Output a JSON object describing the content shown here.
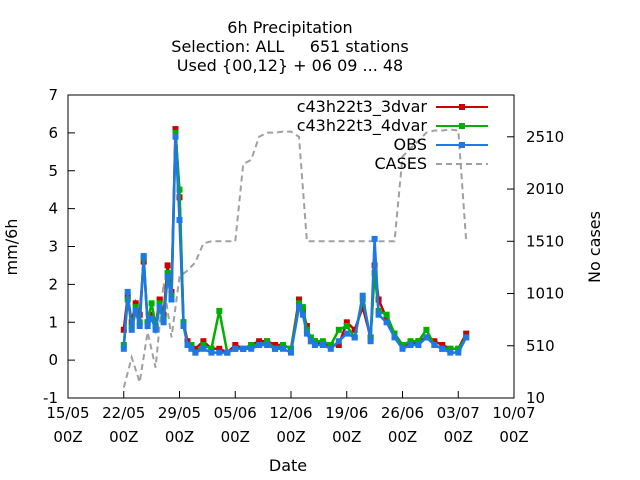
{
  "chart_data": {
    "type": "line",
    "title_lines": [
      "6h Precipitation",
      "Selection: ALL     651 stations",
      "Used {00,12} + 06 09 ... 48"
    ],
    "xlabel": "Date",
    "ylabel": "mm/6h",
    "y2label": "No cases",
    "xlim": [
      "2012-05-15 00Z",
      "2012-07-10 00Z"
    ],
    "ylim": [
      -1,
      7
    ],
    "y2lim": [
      10,
      2910
    ],
    "xticks": [
      {
        "top": "15/05",
        "bottom": "00Z"
      },
      {
        "top": "22/05",
        "bottom": "00Z"
      },
      {
        "top": "29/05",
        "bottom": "00Z"
      },
      {
        "top": "05/06",
        "bottom": "00Z"
      },
      {
        "top": "12/06",
        "bottom": "00Z"
      },
      {
        "top": "19/06",
        "bottom": "00Z"
      },
      {
        "top": "26/06",
        "bottom": "00Z"
      },
      {
        "top": "03/07",
        "bottom": "00Z"
      },
      {
        "top": "10/07",
        "bottom": "00Z"
      }
    ],
    "yticks": [
      "-1",
      "0",
      "1",
      "2",
      "3",
      "4",
      "5",
      "6",
      "7"
    ],
    "y2ticks": [
      "10",
      "510",
      "1010",
      "1510",
      "2010",
      "2510"
    ],
    "legend_position": "top-right",
    "series": [
      {
        "name": "c43h22t3_3dvar",
        "color": "#cc0000",
        "axis": "y",
        "x": [
          7.0,
          7.5,
          8.0,
          8.5,
          9.0,
          9.5,
          10.0,
          10.5,
          11.0,
          11.5,
          12.0,
          12.5,
          13.0,
          13.5,
          14.0,
          14.5,
          15.0,
          15.5,
          16.0,
          17.0,
          18.0,
          19.0,
          20.0,
          21.0,
          22.0,
          23.0,
          24.0,
          25.0,
          26.0,
          27.0,
          28.0,
          29.0,
          29.5,
          30.0,
          30.5,
          31.0,
          32.0,
          33.0,
          34.0,
          35.0,
          36.0,
          37.0,
          38.0,
          38.5,
          39.0,
          40.0,
          41.0,
          42.0,
          43.0,
          44.0,
          45.0,
          46.0,
          47.0,
          48.0,
          49.0,
          50.0
        ],
        "values": [
          0.8,
          1.7,
          1.0,
          1.5,
          1.2,
          2.6,
          1.0,
          1.2,
          0.9,
          1.6,
          1.2,
          2.5,
          1.8,
          6.1,
          4.3,
          1.0,
          0.5,
          0.4,
          0.3,
          0.5,
          0.3,
          0.3,
          0.2,
          0.4,
          0.3,
          0.4,
          0.5,
          0.5,
          0.4,
          0.4,
          0.3,
          1.6,
          1.3,
          0.9,
          0.5,
          0.5,
          0.4,
          0.4,
          0.4,
          1.0,
          0.8,
          1.4,
          0.6,
          2.5,
          1.6,
          1.1,
          0.7,
          0.4,
          0.4,
          0.5,
          0.6,
          0.5,
          0.4,
          0.3,
          0.3,
          0.7
        ]
      },
      {
        "name": "c43h22t3_4dvar",
        "color": "#00b000",
        "axis": "y",
        "x": [
          7.0,
          7.5,
          8.0,
          8.5,
          9.0,
          9.5,
          10.0,
          10.5,
          11.0,
          11.5,
          12.0,
          12.5,
          13.0,
          13.5,
          14.0,
          14.5,
          15.0,
          15.5,
          16.0,
          17.0,
          18.0,
          19.0,
          20.0,
          21.0,
          22.0,
          23.0,
          24.0,
          25.0,
          26.0,
          27.0,
          28.0,
          29.0,
          29.5,
          30.0,
          30.5,
          31.0,
          32.0,
          33.0,
          34.0,
          35.0,
          36.0,
          37.0,
          38.0,
          38.5,
          39.0,
          40.0,
          41.0,
          42.0,
          43.0,
          44.0,
          45.0,
          46.0,
          47.0,
          48.0,
          49.0,
          50.0
        ],
        "values": [
          0.4,
          1.6,
          0.9,
          1.4,
          1.0,
          2.7,
          1.0,
          1.5,
          0.9,
          1.5,
          1.1,
          2.3,
          1.7,
          6.0,
          4.5,
          1.0,
          0.4,
          0.4,
          0.2,
          0.4,
          0.3,
          1.3,
          0.2,
          0.3,
          0.3,
          0.4,
          0.4,
          0.5,
          0.3,
          0.4,
          0.3,
          1.5,
          1.4,
          0.8,
          0.6,
          0.5,
          0.5,
          0.4,
          0.8,
          0.9,
          0.6,
          1.6,
          0.6,
          2.3,
          1.3,
          1.2,
          0.7,
          0.4,
          0.5,
          0.5,
          0.8,
          0.4,
          0.3,
          0.3,
          0.3,
          0.6
        ]
      },
      {
        "name": "OBS",
        "color": "#1e78e6",
        "axis": "y",
        "x": [
          7.0,
          7.5,
          8.0,
          8.5,
          9.0,
          9.5,
          10.0,
          10.5,
          11.0,
          11.5,
          12.0,
          12.5,
          13.0,
          13.5,
          14.0,
          14.5,
          15.0,
          15.5,
          16.0,
          17.0,
          18.0,
          19.0,
          20.0,
          21.0,
          22.0,
          23.0,
          24.0,
          25.0,
          26.0,
          27.0,
          28.0,
          29.0,
          29.5,
          30.0,
          30.5,
          31.0,
          32.0,
          33.0,
          34.0,
          35.0,
          36.0,
          37.0,
          38.0,
          38.5,
          39.0,
          40.0,
          41.0,
          42.0,
          43.0,
          44.0,
          45.0,
          46.0,
          47.0,
          48.0,
          49.0,
          50.0
        ],
        "values": [
          0.3,
          1.8,
          0.8,
          1.3,
          0.9,
          2.75,
          0.9,
          1.1,
          0.8,
          1.4,
          1.0,
          2.2,
          1.6,
          5.9,
          3.7,
          0.9,
          0.4,
          0.3,
          0.2,
          0.3,
          0.2,
          0.2,
          0.2,
          0.3,
          0.3,
          0.3,
          0.4,
          0.4,
          0.3,
          0.3,
          0.2,
          1.4,
          1.2,
          0.7,
          0.5,
          0.4,
          0.4,
          0.3,
          0.5,
          0.7,
          0.6,
          1.7,
          0.5,
          3.2,
          1.2,
          1.0,
          0.6,
          0.3,
          0.4,
          0.4,
          0.6,
          0.4,
          0.3,
          0.2,
          0.2,
          0.6
        ]
      },
      {
        "name": "CASES",
        "color": "#a0a0a0",
        "axis": "y2",
        "style": "dashed",
        "x": [
          7.0,
          8.0,
          9.0,
          10.0,
          11.0,
          12.0,
          13.0,
          14.0,
          15.0,
          16.0,
          17.0,
          18.0,
          19.0,
          20.0,
          21.0,
          22.0,
          23.0,
          24.0,
          25.0,
          26.0,
          27.0,
          28.0,
          29.0,
          30.0,
          31.0,
          32.0,
          33.0,
          34.0,
          35.0,
          36.0,
          37.0,
          38.0,
          39.0,
          40.0,
          41.0,
          42.0,
          43.0,
          44.0,
          45.0,
          46.0,
          47.0,
          48.0,
          49.0,
          50.0
        ],
        "values": [
          110,
          400,
          160,
          640,
          300,
          1110,
          590,
          1170,
          1230,
          1310,
          1490,
          1510,
          1510,
          1510,
          1510,
          2250,
          2290,
          2510,
          2550,
          2550,
          2560,
          2560,
          2510,
          1510,
          1510,
          1510,
          1510,
          1510,
          1510,
          1510,
          1510,
          1510,
          1510,
          1510,
          1510,
          2320,
          2400,
          2470,
          2550,
          2570,
          2570,
          2580,
          2570,
          1510
        ]
      }
    ]
  }
}
